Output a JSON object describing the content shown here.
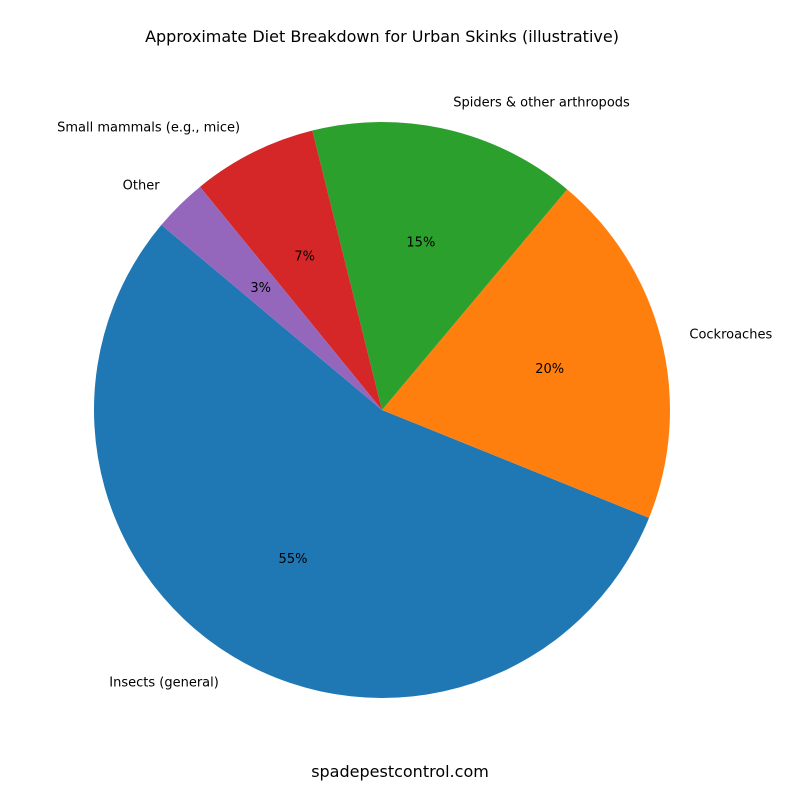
{
  "chart_data": {
    "type": "pie",
    "title": "Approximate Diet Breakdown for Urban Skinks (illustrative)",
    "categories": [
      "Insects (general)",
      "Cockroaches",
      "Spiders & other arthropods",
      "Small mammals (e.g., mice)",
      "Other"
    ],
    "values": [
      55,
      20,
      15,
      7,
      3
    ],
    "pct_labels": [
      "55%",
      "20%",
      "15%",
      "7%",
      "3%"
    ],
    "colors": [
      "#1f77b4",
      "#ff7f0e",
      "#2ca02c",
      "#d62728",
      "#9467bd"
    ],
    "start_angle_deg": 140,
    "direction": "counterclockwise"
  },
  "watermark": "spadepestcontrol.com"
}
